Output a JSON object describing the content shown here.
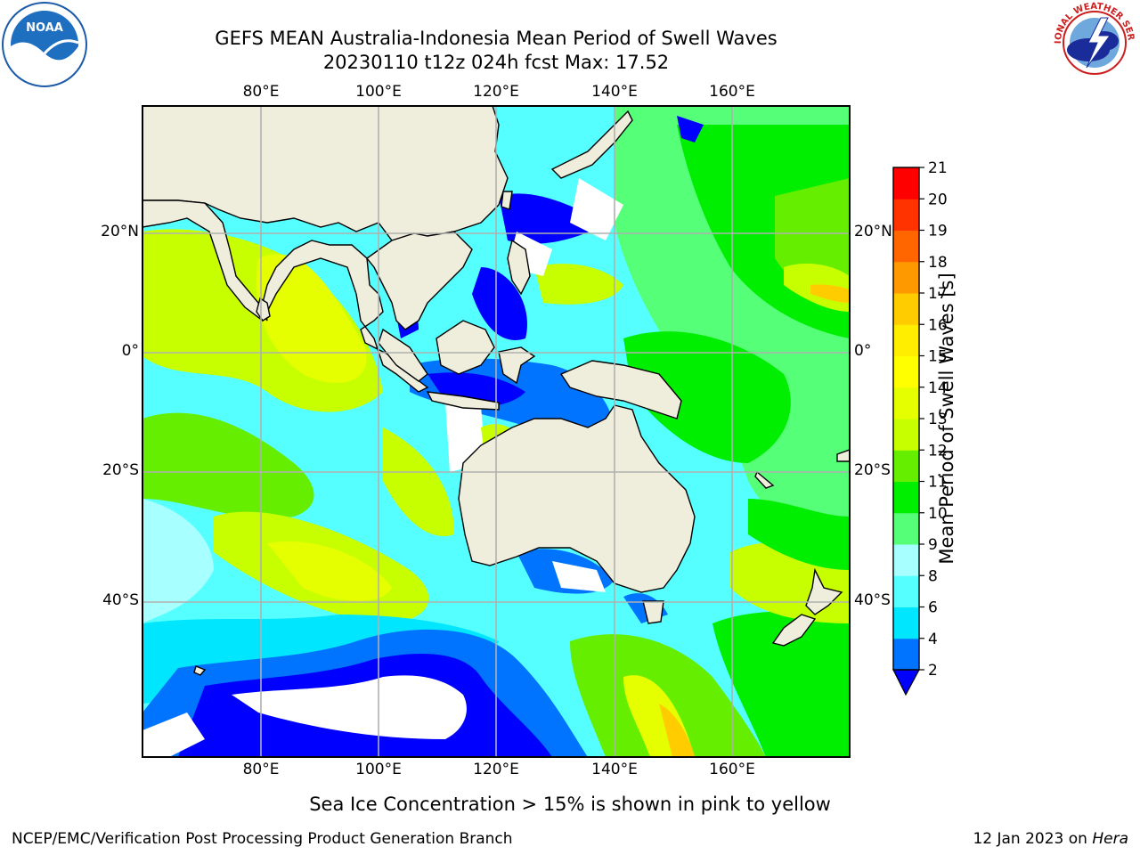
{
  "header": {
    "title_line1": "GEFS MEAN Australia-Indonesia Mean Period of Swell Waves",
    "title_line2": "20230110 t12z 024h fcst   Max: 17.52"
  },
  "logos": {
    "noaa_text": "NOAA",
    "nws_text": "NATIONAL WEATHER SERVICE"
  },
  "map": {
    "lon_labels": [
      "80°E",
      "100°E",
      "120°E",
      "140°E",
      "160°E"
    ],
    "lat_labels": [
      "20°N",
      "0°",
      "20°S",
      "40°S"
    ]
  },
  "colorbar": {
    "label": "Mean Period of Swell Waves [s]",
    "ticks": [
      "2",
      "4",
      "6",
      "8",
      "9",
      "10",
      "11",
      "12",
      "13",
      "14",
      "15",
      "16",
      "17",
      "18",
      "19",
      "20",
      "21"
    ],
    "colors": [
      "#0074ff",
      "#00e6ff",
      "#55ffff",
      "#a8ffff",
      "#55ff77",
      "#00ee00",
      "#66ee00",
      "#c8ff00",
      "#e6ff00",
      "#ffff00",
      "#ffee00",
      "#ffcc00",
      "#ff9900",
      "#ff6600",
      "#ff3300",
      "#ff0000"
    ],
    "under_color": "#0000ff"
  },
  "caption": "Sea Ice Concentration > 15% is shown in pink to yellow",
  "footer": {
    "left": "NCEP/EMC/Verification Post Processing Product Generation Branch",
    "right_prefix": "12 Jan 2023 on ",
    "right_host": "Hera"
  }
}
